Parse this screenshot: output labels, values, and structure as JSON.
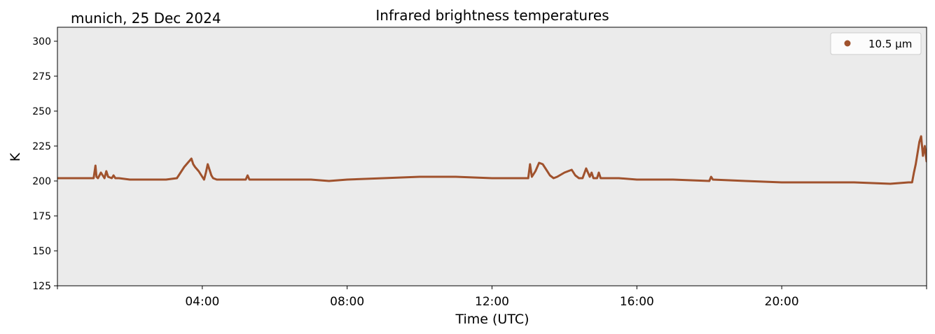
{
  "chart_data": {
    "type": "line",
    "title": "Infrared brightness temperatures",
    "subtitle": "munich, 25 Dec 2024",
    "xlabel": "Time (UTC)",
    "ylabel": "K",
    "xlim": [
      0,
      24
    ],
    "ylim": [
      125,
      310
    ],
    "x_tick_values": [
      4,
      8,
      12,
      16,
      20
    ],
    "x_tick_labels": [
      "04:00",
      "08:00",
      "12:00",
      "16:00",
      "20:00"
    ],
    "x_minor_ticks": [
      0,
      24
    ],
    "y_ticks": [
      125,
      150,
      175,
      200,
      225,
      250,
      275,
      300
    ],
    "y_tick_labels": [
      "125",
      "150",
      "175",
      "200",
      "225",
      "250",
      "275",
      "300"
    ],
    "grid": false,
    "background": "#ebebeb",
    "legend": {
      "placement": "top-right",
      "entries": [
        "10.5 µm"
      ]
    },
    "series": [
      {
        "name": "10.5 µm",
        "color": "#a0522d",
        "x": [
          0.0,
          0.5,
          1.0,
          1.05,
          1.08,
          1.12,
          1.2,
          1.3,
          1.35,
          1.4,
          1.5,
          1.55,
          1.6,
          1.7,
          2.0,
          2.5,
          3.0,
          3.3,
          3.4,
          3.5,
          3.6,
          3.7,
          3.75,
          3.8,
          3.9,
          4.0,
          4.05,
          4.1,
          4.15,
          4.2,
          4.25,
          4.3,
          4.4,
          4.5,
          5.0,
          5.2,
          5.25,
          5.3,
          6.0,
          7.0,
          7.5,
          8.0,
          9.0,
          10.0,
          10.5,
          11.0,
          12.0,
          12.5,
          13.0,
          13.05,
          13.1,
          13.2,
          13.3,
          13.4,
          13.5,
          13.6,
          13.7,
          13.8,
          14.0,
          14.2,
          14.3,
          14.4,
          14.5,
          14.6,
          14.7,
          14.75,
          14.8,
          14.9,
          14.95,
          15.0,
          15.5,
          16.0,
          17.0,
          18.0,
          18.05,
          18.1,
          19.0,
          20.0,
          21.0,
          22.0,
          23.0,
          23.5,
          23.6,
          23.65,
          23.7,
          23.75,
          23.8,
          23.85,
          23.9,
          23.95,
          24.0
        ],
        "y": [
          202,
          202,
          202,
          211,
          203,
          202,
          206,
          202,
          207,
          203,
          202,
          204,
          202,
          202,
          201,
          201,
          201,
          202,
          206,
          210,
          213,
          216,
          212,
          210,
          207,
          203,
          201,
          206,
          212,
          208,
          204,
          202,
          201,
          201,
          201,
          201,
          204,
          201,
          201,
          201,
          200,
          201,
          202,
          203,
          203,
          203,
          202,
          202,
          202,
          212,
          203,
          207,
          213,
          212,
          208,
          204,
          202,
          203,
          206,
          208,
          204,
          202,
          202,
          209,
          203,
          206,
          202,
          202,
          206,
          202,
          202,
          201,
          201,
          200,
          203,
          201,
          200,
          199,
          199,
          199,
          198,
          199,
          199,
          206,
          212,
          220,
          228,
          232,
          218,
          225,
          214
        ]
      }
    ]
  }
}
